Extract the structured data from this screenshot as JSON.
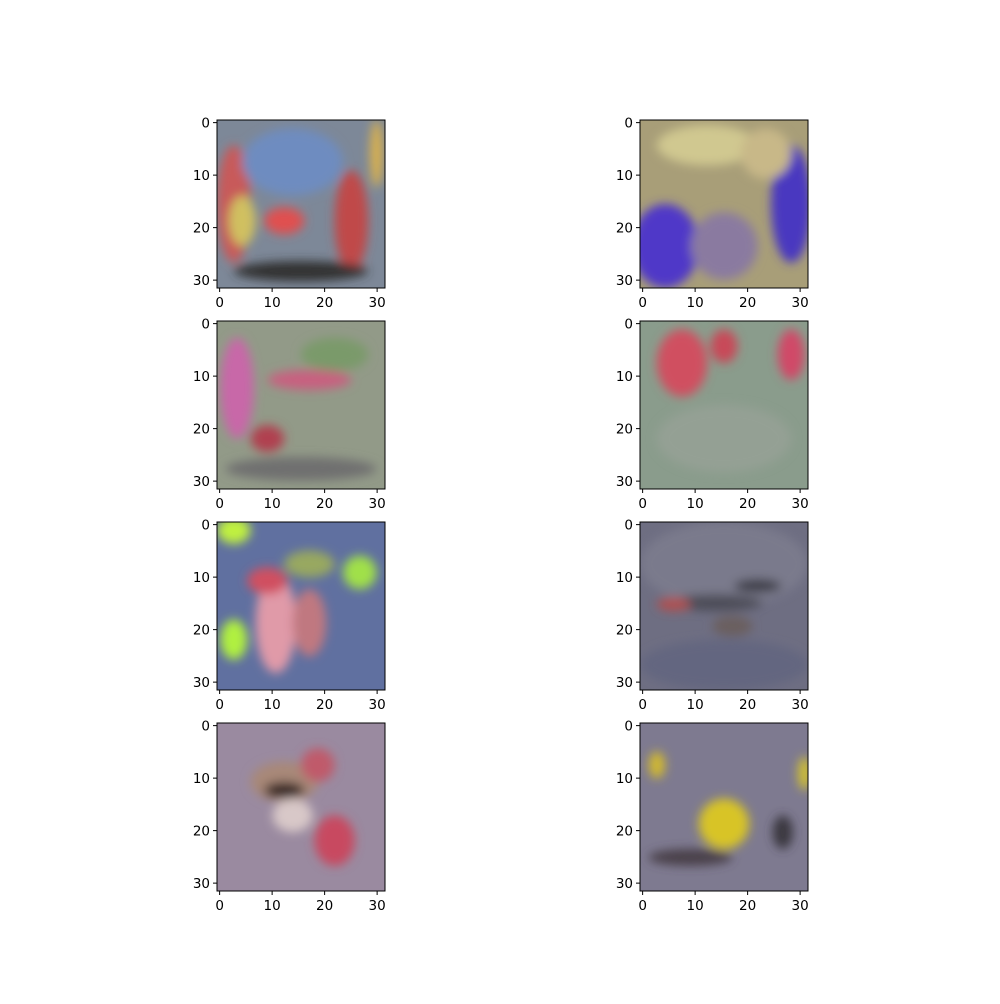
{
  "chart_data": [
    {
      "type": "image",
      "xlim": [
        -0.5,
        31.5
      ],
      "ylim": [
        31.5,
        -0.5
      ],
      "xticks": [
        0,
        10,
        20,
        30
      ],
      "yticks": [
        0,
        10,
        20,
        30
      ]
    },
    {
      "type": "image",
      "xlim": [
        -0.5,
        31.5
      ],
      "ylim": [
        31.5,
        -0.5
      ],
      "xticks": [
        0,
        10,
        20,
        30
      ],
      "yticks": [
        0,
        10,
        20,
        30
      ]
    },
    {
      "type": "image",
      "xlim": [
        -0.5,
        31.5
      ],
      "ylim": [
        31.5,
        -0.5
      ],
      "xticks": [
        0,
        10,
        20,
        30
      ],
      "yticks": [
        0,
        10,
        20,
        30
      ]
    },
    {
      "type": "image",
      "xlim": [
        -0.5,
        31.5
      ],
      "ylim": [
        31.5,
        -0.5
      ],
      "xticks": [
        0,
        10,
        20,
        30
      ],
      "yticks": [
        0,
        10,
        20,
        30
      ]
    },
    {
      "type": "image",
      "xlim": [
        -0.5,
        31.5
      ],
      "ylim": [
        31.5,
        -0.5
      ],
      "xticks": [
        0,
        10,
        20,
        30
      ],
      "yticks": [
        0,
        10,
        20,
        30
      ]
    },
    {
      "type": "image",
      "xlim": [
        -0.5,
        31.5
      ],
      "ylim": [
        31.5,
        -0.5
      ],
      "xticks": [
        0,
        10,
        20,
        30
      ],
      "yticks": [
        0,
        10,
        20,
        30
      ]
    },
    {
      "type": "image",
      "xlim": [
        -0.5,
        31.5
      ],
      "ylim": [
        31.5,
        -0.5
      ],
      "xticks": [
        0,
        10,
        20,
        30
      ],
      "yticks": [
        0,
        10,
        20,
        30
      ]
    },
    {
      "type": "image",
      "xlim": [
        -0.5,
        31.5
      ],
      "ylim": [
        31.5,
        -0.5
      ],
      "xticks": [
        0,
        10,
        20,
        30
      ],
      "yticks": [
        0,
        10,
        20,
        30
      ]
    }
  ]
}
